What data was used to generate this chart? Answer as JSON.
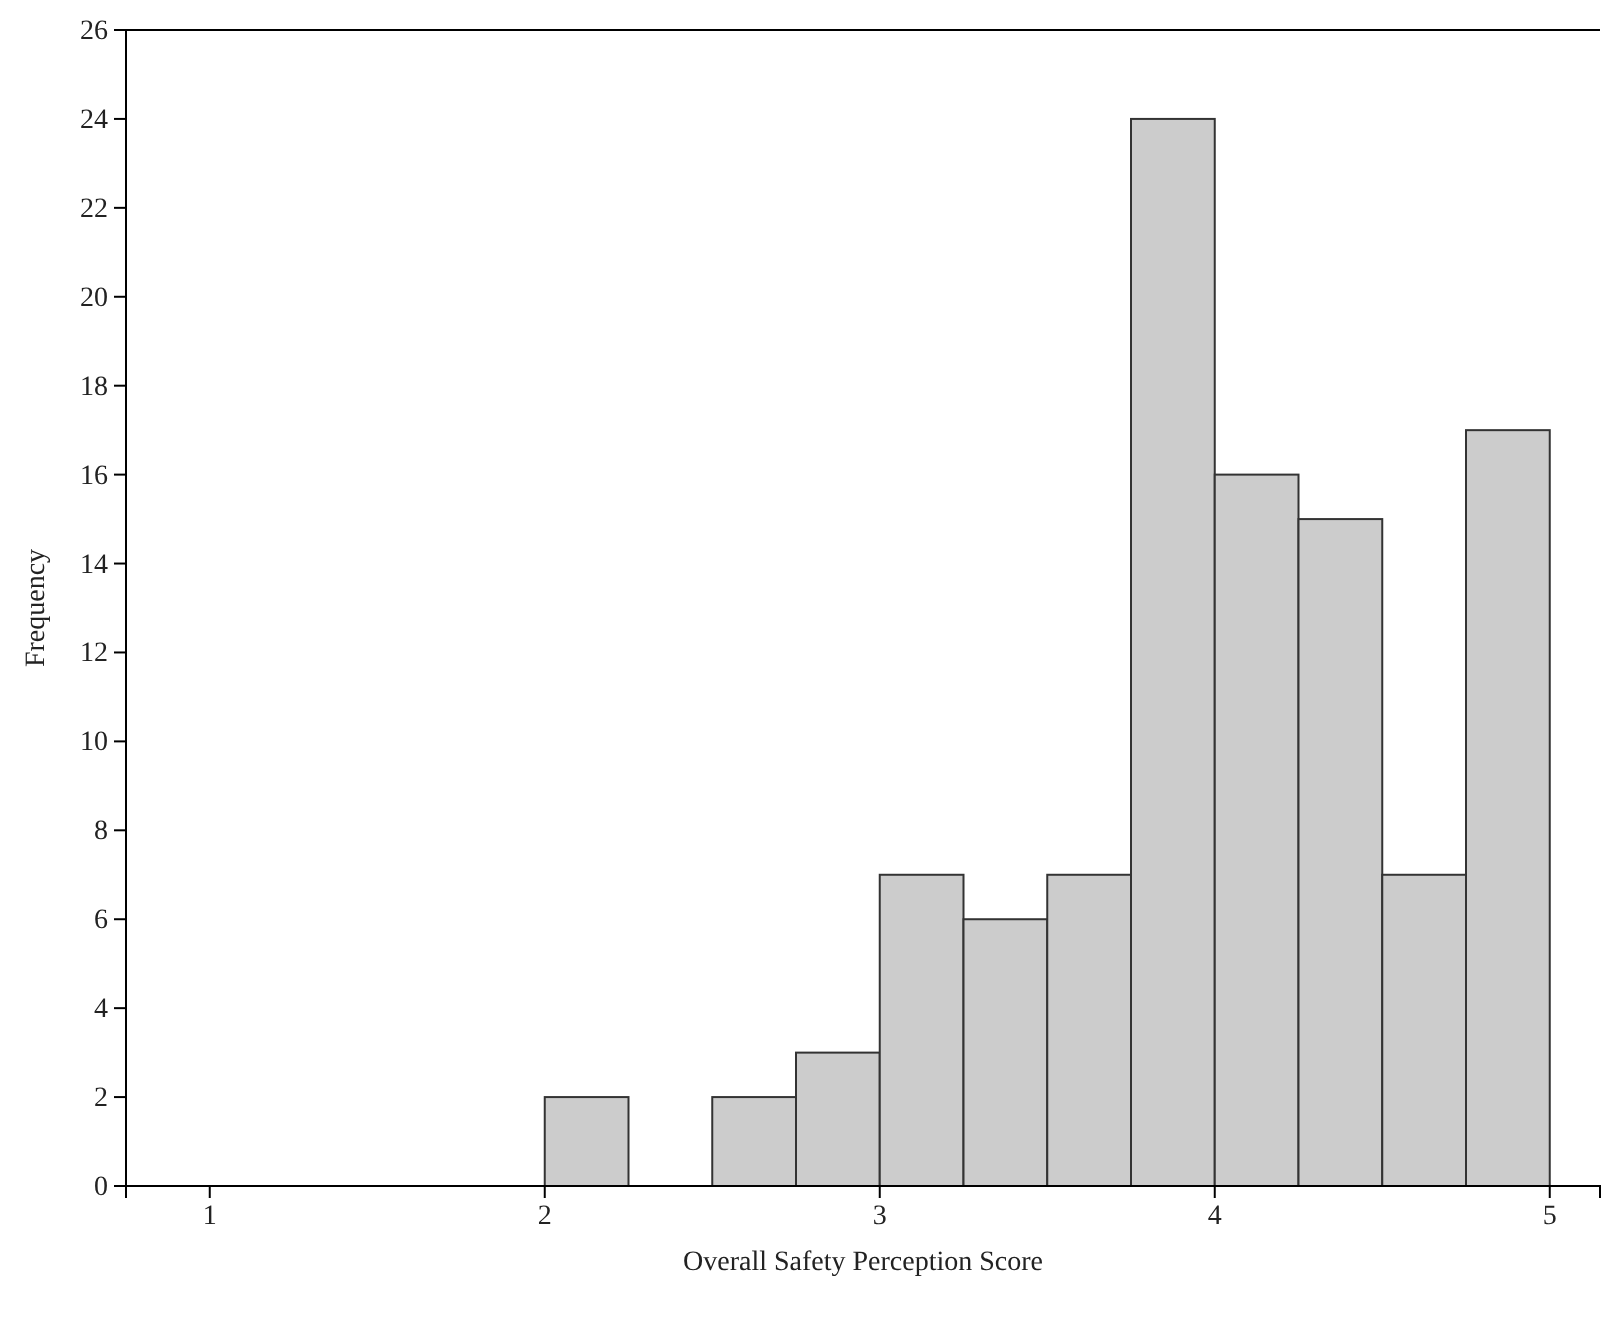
{
  "chart_data": {
    "type": "histogram",
    "xlabel": "Overall Safety Perception Score",
    "ylabel": "Frequency",
    "bins": [
      2,
      2.25,
      2.5,
      2.75,
      3,
      3.25,
      3.5,
      3.75,
      4,
      4.25,
      4.5,
      4.75,
      5
    ],
    "values": [
      2,
      0,
      2,
      3,
      7,
      6,
      7,
      24,
      16,
      15,
      7,
      17
    ],
    "color": "#cccccc",
    "xlim": [
      0.75,
      5.15
    ],
    "xticks": [
      1,
      2,
      3,
      4,
      5
    ],
    "ylim": [
      0,
      26
    ],
    "yticks": [
      0,
      2,
      4,
      6,
      8,
      10,
      12,
      14,
      16,
      18,
      20,
      22,
      24,
      26
    ],
    "grid": false
  }
}
